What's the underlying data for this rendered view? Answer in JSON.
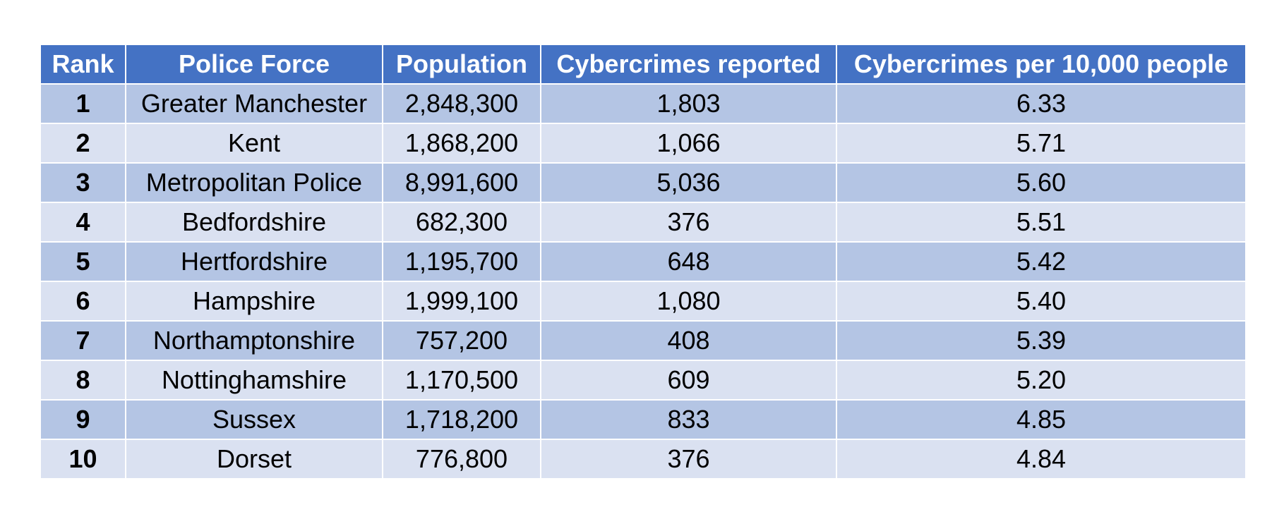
{
  "table": {
    "headers": [
      "Rank",
      "Police Force",
      "Population",
      "Cybercrimes reported",
      "Cybercrimes per 10,000 people"
    ],
    "rows": [
      [
        "1",
        "Greater Manchester",
        "2,848,300",
        "1,803",
        "6.33"
      ],
      [
        "2",
        "Kent",
        "1,868,200",
        "1,066",
        "5.71"
      ],
      [
        "3",
        "Metropolitan Police",
        "8,991,600",
        "5,036",
        "5.60"
      ],
      [
        "4",
        "Bedfordshire",
        "682,300",
        "376",
        "5.51"
      ],
      [
        "5",
        "Hertfordshire",
        "1,195,700",
        "648",
        "5.42"
      ],
      [
        "6",
        "Hampshire",
        "1,999,100",
        "1,080",
        "5.40"
      ],
      [
        "7",
        "Northamptonshire",
        "757,200",
        "408",
        "5.39"
      ],
      [
        "8",
        "Nottinghamshire",
        "1,170,500",
        "609",
        "5.20"
      ],
      [
        "9",
        "Sussex",
        "1,718,200",
        "833",
        "4.85"
      ],
      [
        "10",
        "Dorset",
        "776,800",
        "376",
        "4.84"
      ]
    ]
  },
  "colors": {
    "header_bg": "#4472c4",
    "row_odd_bg": "#b4c5e4",
    "row_even_bg": "#dae1f1"
  }
}
